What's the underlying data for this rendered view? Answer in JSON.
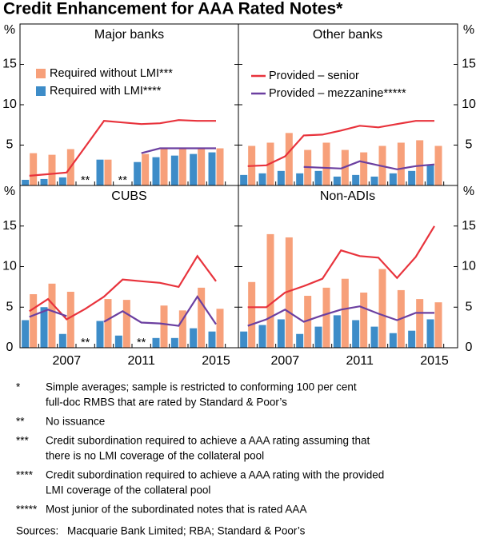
{
  "chart_data": {
    "type": "bar-line",
    "title": "Credit Enhancement for AAA Rated Notes*",
    "y_unit": "%",
    "x": [
      2005,
      2006,
      2007,
      2008,
      2009,
      2010,
      2011,
      2012,
      2013,
      2014,
      2015
    ],
    "xlim": [
      2004.5,
      2016.2
    ],
    "xticks": [
      2007,
      2011,
      2015
    ],
    "ylim": [
      0,
      20
    ],
    "yticks": [
      0,
      5,
      10,
      15
    ],
    "series": [
      {
        "name": "Required without LMI***",
        "color": "#f7a07a",
        "kind": "bar",
        "values": [
          [
            4.0,
            3.8,
            4.5,
            null,
            3.2,
            null,
            3.9,
            4.6,
            4.6,
            4.6,
            4.6
          ],
          [
            4.9,
            5.3,
            6.5,
            4.4,
            5.3,
            4.4,
            4.1,
            4.9,
            5.3,
            5.6,
            4.9
          ],
          [
            6.6,
            7.9,
            6.9,
            null,
            6.0,
            5.9,
            null,
            5.2,
            4.6,
            7.4,
            4.8
          ],
          [
            8.1,
            14.0,
            13.6,
            6.4,
            7.4,
            8.5,
            6.8,
            9.7,
            7.1,
            6.0,
            5.6
          ]
        ]
      },
      {
        "name": "Required with LMI****",
        "color": "#3d8cc8",
        "kind": "bar",
        "values": [
          [
            0.7,
            0.8,
            1.0,
            null,
            3.2,
            null,
            2.9,
            3.5,
            3.7,
            3.9,
            4.1
          ],
          [
            1.3,
            1.5,
            1.8,
            1.5,
            1.8,
            1.1,
            1.3,
            1.1,
            1.5,
            1.8,
            2.5
          ],
          [
            3.4,
            5.0,
            1.7,
            null,
            3.3,
            1.5,
            null,
            1.2,
            1.2,
            2.4,
            2.0
          ],
          [
            2.0,
            2.8,
            3.5,
            1.7,
            2.6,
            4.0,
            3.4,
            2.6,
            1.8,
            2.1,
            3.5
          ]
        ]
      },
      {
        "name": "Provided – senior",
        "color": "#e8333c",
        "kind": "line",
        "values": [
          [
            1.2,
            1.4,
            1.6,
            4.8,
            8.0,
            7.8,
            7.6,
            7.7,
            8.1,
            8.0,
            8.0
          ],
          [
            2.4,
            2.5,
            3.6,
            6.2,
            6.3,
            6.8,
            7.4,
            7.2,
            7.6,
            8.0,
            8.0
          ],
          [
            4.5,
            6.0,
            3.5,
            4.8,
            6.3,
            8.4,
            8.2,
            8.0,
            7.5,
            11.3,
            8.2
          ],
          [
            5.0,
            5.0,
            6.8,
            7.6,
            8.5,
            12.0,
            11.3,
            11.1,
            8.6,
            11.2,
            15.0
          ]
        ]
      },
      {
        "name": "Provided – mezzanine*****",
        "color": "#6b3fa0",
        "kind": "line",
        "values": [
          [
            null,
            null,
            null,
            null,
            null,
            null,
            4.0,
            4.6,
            4.6,
            4.6,
            4.6
          ],
          [
            null,
            null,
            null,
            2.3,
            2.2,
            2.1,
            3.0,
            2.5,
            2.0,
            2.4,
            2.6
          ],
          [
            3.8,
            4.7,
            3.9,
            null,
            3.2,
            4.5,
            3.1,
            3.0,
            2.7,
            6.3,
            2.9
          ],
          [
            2.7,
            3.5,
            4.7,
            3.2,
            4.0,
            4.7,
            5.1,
            4.2,
            3.4,
            4.3,
            4.3
          ]
        ]
      }
    ],
    "panels": [
      {
        "title": "Major banks",
        "annotations": [
          {
            "x": 2008,
            "text": "**"
          },
          {
            "x": 2010,
            "text": "**"
          }
        ]
      },
      {
        "title": "Other banks",
        "annotations": []
      },
      {
        "title": "CUBS",
        "annotations": [
          {
            "x": 2008,
            "text": "**"
          },
          {
            "x": 2011,
            "text": "**"
          }
        ]
      },
      {
        "title": "Non-ADIs",
        "annotations": []
      }
    ],
    "notes": [
      {
        "marker": "*",
        "lines": [
          "Simple averages; sample is restricted to conforming 100 per cent",
          "full-doc RMBS that are rated by Standard & Poor’s"
        ]
      },
      {
        "marker": "**",
        "lines": [
          "No issuance"
        ]
      },
      {
        "marker": "***",
        "lines": [
          "Credit subordination required to achieve a AAA rating assuming that",
          "there is no LMI coverage of the collateral pool"
        ]
      },
      {
        "marker": "****",
        "lines": [
          "Credit subordination required to achieve a AAA rating with the provided",
          "LMI coverage of the collateral pool"
        ]
      },
      {
        "marker": "*****",
        "lines": [
          "Most junior of the subordinated notes that is rated AAA"
        ]
      }
    ],
    "sources_label": "Sources:",
    "sources": "Macquarie Bank Limited; RBA; Standard & Poor’s"
  }
}
